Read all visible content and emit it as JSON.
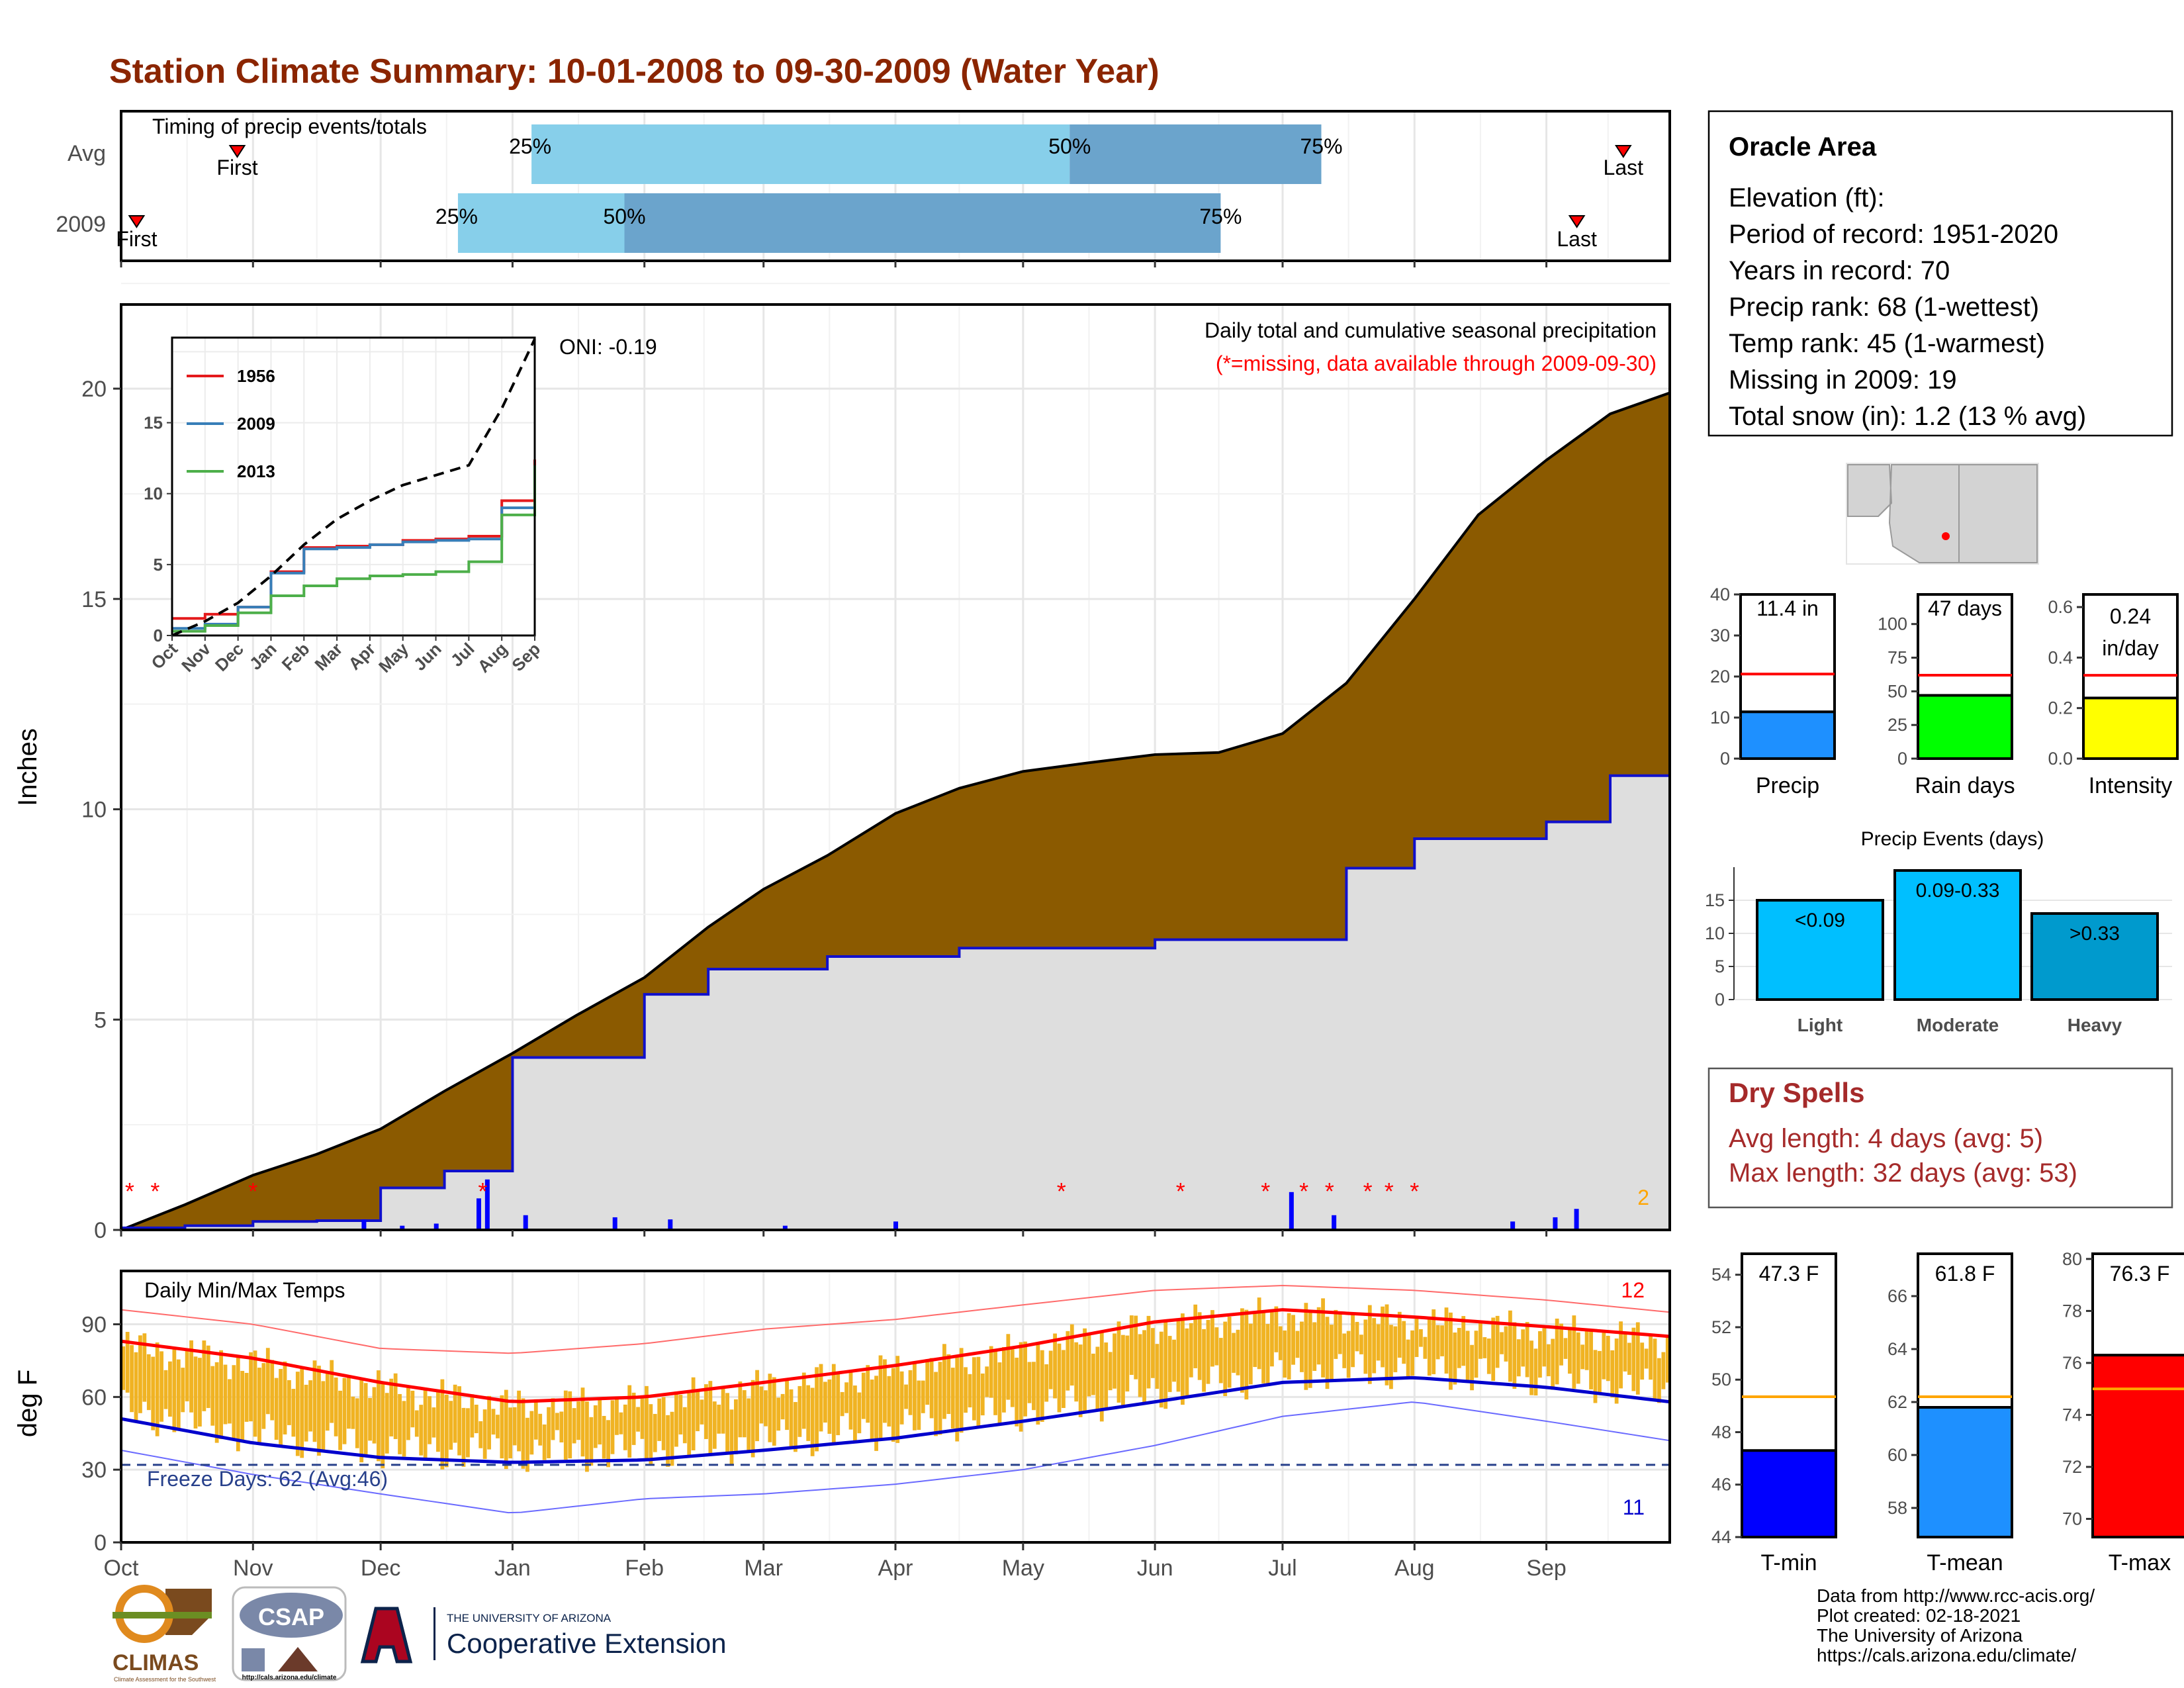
{
  "title": "Station Climate Summary: 10-01-2008 to 09-30-2009 (Water Year)",
  "colors": {
    "title": "#8b2500",
    "cum_avg": "#8b5a00",
    "cum_obs_fill": "#dedede",
    "cum_obs_line": "#1010cc",
    "daily_bar": "#0000ff",
    "missing": "#ff0000",
    "temp_range": "#f0b323",
    "tmax_avg": "#ff0000",
    "tmin_avg": "#0000cc",
    "q_light": "#87cfea",
    "q_dark": "#6ba4cc"
  },
  "timing_panel": {
    "label": "Timing of precip events/totals",
    "rows": [
      {
        "name": "Avg",
        "first_label": "First",
        "last_label": "Last",
        "first": 0.3,
        "p25": 1.06,
        "p50": 2.45,
        "p75": 3.1,
        "last": 3.88,
        "labels": {
          "p25": "25%",
          "p50": "50%",
          "p75": "75%"
        }
      },
      {
        "name": "2009",
        "first_label": "First",
        "last_label": "Last",
        "first": 0.04,
        "p25": 0.87,
        "p50": 1.3,
        "p75": 2.84,
        "last": 3.76,
        "labels": {
          "p25": "25%",
          "p50": "50%",
          "p75": "75%"
        }
      }
    ]
  },
  "precip_panel": {
    "ylabel": "Inches",
    "oni": "ONI: -0.19",
    "caption": "Daily total and cumulative seasonal precipitation",
    "missing_note": "(*=missing, data available through 2009-09-30)",
    "corner_number": "2",
    "yticks": [
      "0",
      "5",
      "10",
      "15",
      "20"
    ]
  },
  "inset": {
    "legend": [
      "1956",
      "2009",
      "2013"
    ],
    "yticks": [
      "0",
      "5",
      "10",
      "15"
    ],
    "xticks": [
      "Oct",
      "Nov",
      "Dec",
      "Jan",
      "Feb",
      "Mar",
      "Apr",
      "May",
      "Jun",
      "Jul",
      "Aug",
      "Sep"
    ]
  },
  "temp_panel": {
    "label": "Daily Min/Max Temps",
    "ylabel": "deg F",
    "freeze": "Freeze Days: 62 (Avg:46)",
    "max_count": "12",
    "min_count": "11",
    "yticks": [
      "0",
      "30",
      "60",
      "90"
    ]
  },
  "months": [
    "Oct",
    "Nov",
    "Dec",
    "Jan",
    "Feb",
    "Mar",
    "Apr",
    "May",
    "Jun",
    "Jul",
    "Aug",
    "Sep"
  ],
  "info_box": {
    "name": "Oracle Area",
    "lines": [
      "Elevation (ft):",
      "Period of record: 1951-2020",
      "Years in record: 70",
      "Precip rank: 68 (1-wettest)",
      "Temp rank: 45 (1-warmest)",
      "Missing in 2009: 19",
      "Total snow (in): 1.2 (13 % avg)"
    ]
  },
  "precip_stats": [
    {
      "label": "Precip",
      "value_label": "11.4 in",
      "value": 11.4,
      "avg": 20.6,
      "ymax": 40,
      "yticks": [
        "0",
        "10",
        "20",
        "30",
        "40"
      ],
      "color": "#1e90ff"
    },
    {
      "label": "Rain days",
      "value_label": "47 days",
      "value": 47,
      "avg": 62,
      "ymax": 122,
      "yticks": [
        "0",
        "25",
        "50",
        "75",
        "100"
      ],
      "color": "#00ff00"
    },
    {
      "label": "Intensity",
      "value_label": "0.24 in/day",
      "value": 0.24,
      "avg": 0.33,
      "ymax": 0.65,
      "yticks": [
        "0.0",
        "0.2",
        "0.4",
        "0.6"
      ],
      "color": "#ffff00"
    }
  ],
  "precip_events": {
    "title": "Precip Events (days)",
    "yticks": [
      "0",
      "5",
      "10",
      "15"
    ],
    "bars": [
      {
        "label": "Light",
        "range": "<0.09",
        "value": 15
      },
      {
        "label": "Moderate",
        "range": "0.09-0.33",
        "value": 19.5
      },
      {
        "label": "Heavy",
        "range": ">0.33",
        "value": 13
      }
    ]
  },
  "dry_spells": {
    "title": "Dry Spells",
    "avg_line": "Avg length: 4 days (avg: 5)",
    "max_line": "Max length: 32 days (avg: 53)"
  },
  "temp_stats": [
    {
      "label": "T-min",
      "value_label": "47.3 F",
      "value": 47.3,
      "avg": 49.35,
      "ymin": 44,
      "ymax": 54.8,
      "ticks": [
        44,
        46,
        48,
        50,
        52,
        54
      ],
      "color": "#0000ff"
    },
    {
      "label": "T-mean",
      "value_label": "61.8 F",
      "value": 61.8,
      "avg": 62.2,
      "ymin": 56.9,
      "ymax": 67.6,
      "ticks": [
        58,
        60,
        62,
        64,
        66
      ],
      "color": "#1e90ff"
    },
    {
      "label": "T-max",
      "value_label": "76.3 F",
      "value": 76.3,
      "avg": 75.0,
      "ymin": 69.3,
      "ymax": 80.2,
      "ticks": [
        70,
        72,
        74,
        76,
        78,
        80
      ],
      "color": "#ff0000"
    }
  ],
  "footer": {
    "logos": {
      "climas": "CLIMAS",
      "climas_sub": "Climate Assessment for the Southwest",
      "csap": "CSAP",
      "csap_url": "http://cals.arizona.edu/climate",
      "ua_line1": "THE UNIVERSITY OF ARIZONA",
      "ua_line2": "Cooperative Extension"
    },
    "credits": [
      "Data from http://www.rcc-acis.org/",
      "Plot created: 02-18-2021",
      "The University of Arizona",
      "https://cals.arizona.edu/climate/"
    ]
  },
  "chart_data": [
    {
      "type": "area",
      "title": "Daily total and cumulative seasonal precipitation",
      "ylabel": "Inches",
      "ylim": [
        0,
        22
      ],
      "x": [
        "2008-10-01",
        "2008-10-16",
        "2008-11-01",
        "2008-11-16",
        "2008-12-01",
        "2008-12-16",
        "2009-01-01",
        "2009-01-16",
        "2009-02-01",
        "2009-02-16",
        "2009-03-01",
        "2009-03-16",
        "2009-04-01",
        "2009-04-16",
        "2009-05-01",
        "2009-05-16",
        "2009-06-01",
        "2009-06-16",
        "2009-07-01",
        "2009-07-16",
        "2009-08-01",
        "2009-08-16",
        "2009-09-01",
        "2009-09-16",
        "2009-09-30"
      ],
      "series": [
        {
          "name": "Average cumulative",
          "values": [
            0.0,
            0.6,
            1.3,
            1.8,
            2.4,
            3.3,
            4.2,
            5.1,
            6.0,
            7.2,
            8.1,
            8.9,
            9.9,
            10.5,
            10.9,
            11.1,
            11.3,
            11.35,
            11.8,
            13.0,
            15.0,
            17.0,
            18.3,
            19.4,
            19.9
          ]
        },
        {
          "name": "2009 cumulative",
          "values": [
            0.05,
            0.1,
            0.2,
            0.22,
            1.0,
            1.4,
            4.1,
            4.1,
            5.6,
            6.2,
            6.2,
            6.5,
            6.5,
            6.7,
            6.7,
            6.7,
            6.9,
            6.9,
            6.9,
            8.6,
            9.3,
            9.3,
            9.7,
            10.8,
            11.4
          ]
        }
      ],
      "daily_events": [
        {
          "date": "2008-11-27",
          "in": 0.25
        },
        {
          "date": "2008-12-06",
          "in": 0.1
        },
        {
          "date": "2008-12-14",
          "in": 0.15
        },
        {
          "date": "2008-12-24",
          "in": 0.75
        },
        {
          "date": "2008-12-26",
          "in": 1.2
        },
        {
          "date": "2009-01-04",
          "in": 0.35
        },
        {
          "date": "2009-01-25",
          "in": 0.3
        },
        {
          "date": "2009-02-07",
          "in": 0.25
        },
        {
          "date": "2009-03-06",
          "in": 0.1
        },
        {
          "date": "2009-04-01",
          "in": 0.2
        },
        {
          "date": "2009-07-03",
          "in": 0.9
        },
        {
          "date": "2009-07-13",
          "in": 0.35
        },
        {
          "date": "2009-08-24",
          "in": 0.2
        },
        {
          "date": "2009-09-03",
          "in": 0.3
        },
        {
          "date": "2009-09-08",
          "in": 0.5
        }
      ],
      "missing_dates": [
        "2008-10-03",
        "2008-10-09",
        "2008-11-01",
        "2008-12-25",
        "2009-05-10",
        "2009-06-07",
        "2009-06-27",
        "2009-07-06",
        "2009-07-12",
        "2009-07-21",
        "2009-07-26",
        "2009-08-01"
      ]
    },
    {
      "type": "line",
      "title": "",
      "x": [
        "Oct",
        "Nov",
        "Dec",
        "Jan",
        "Feb",
        "Mar",
        "Apr",
        "May",
        "Jun",
        "Jul",
        "Aug",
        "Sep"
      ],
      "ylim": [
        0,
        21
      ],
      "series": [
        {
          "name": "1956",
          "values": [
            1.2,
            1.5,
            2.0,
            4.5,
            6.2,
            6.3,
            6.4,
            6.7,
            6.8,
            7.0,
            9.5,
            12.4
          ]
        },
        {
          "name": "2009",
          "values": [
            0.5,
            0.8,
            2.0,
            4.4,
            6.1,
            6.2,
            6.4,
            6.6,
            6.7,
            6.8,
            9.0,
            11.4
          ]
        },
        {
          "name": "",
          "values": [
            0.3,
            0.7,
            1.6,
            2.8,
            3.5,
            4.0,
            4.2,
            4.3,
            4.5,
            5.2,
            8.5,
            12.0
          ]
        },
        {
          "name": "",
          "values": [
            0.0,
            1.0,
            2.3,
            4.2,
            6.4,
            8.2,
            9.5,
            10.6,
            11.3,
            12.0,
            16.0,
            20.9
          ]
        }
      ]
    },
    {
      "type": "bar",
      "title": "Daily Min/Max Temps",
      "ylabel": "deg F",
      "ylim": [
        0,
        112
      ],
      "x": [
        "2008-10-01",
        "2008-11-01",
        "2008-12-01",
        "2009-01-01",
        "2009-02-01",
        "2009-03-01",
        "2009-04-01",
        "2009-05-01",
        "2009-06-01",
        "2009-07-01",
        "2009-08-01",
        "2009-09-01",
        "2009-09-30"
      ],
      "series": [
        {
          "name": "Avg max",
          "values": [
            83,
            76,
            66,
            58,
            60,
            66,
            73,
            81,
            91,
            96,
            93,
            89,
            85
          ]
        },
        {
          "name": "Avg min",
          "values": [
            51,
            41,
            35,
            33,
            34,
            38,
            43,
            50,
            58,
            66,
            68,
            64,
            58
          ]
        },
        {
          "name": "Record max",
          "values": [
            96,
            90,
            80,
            78,
            82,
            88,
            92,
            98,
            104,
            106,
            104,
            100,
            95
          ]
        },
        {
          "name": "Record min",
          "values": [
            38,
            28,
            20,
            12,
            18,
            20,
            24,
            30,
            40,
            52,
            58,
            50,
            42
          ]
        }
      ],
      "freeze_threshold": 32
    }
  ]
}
